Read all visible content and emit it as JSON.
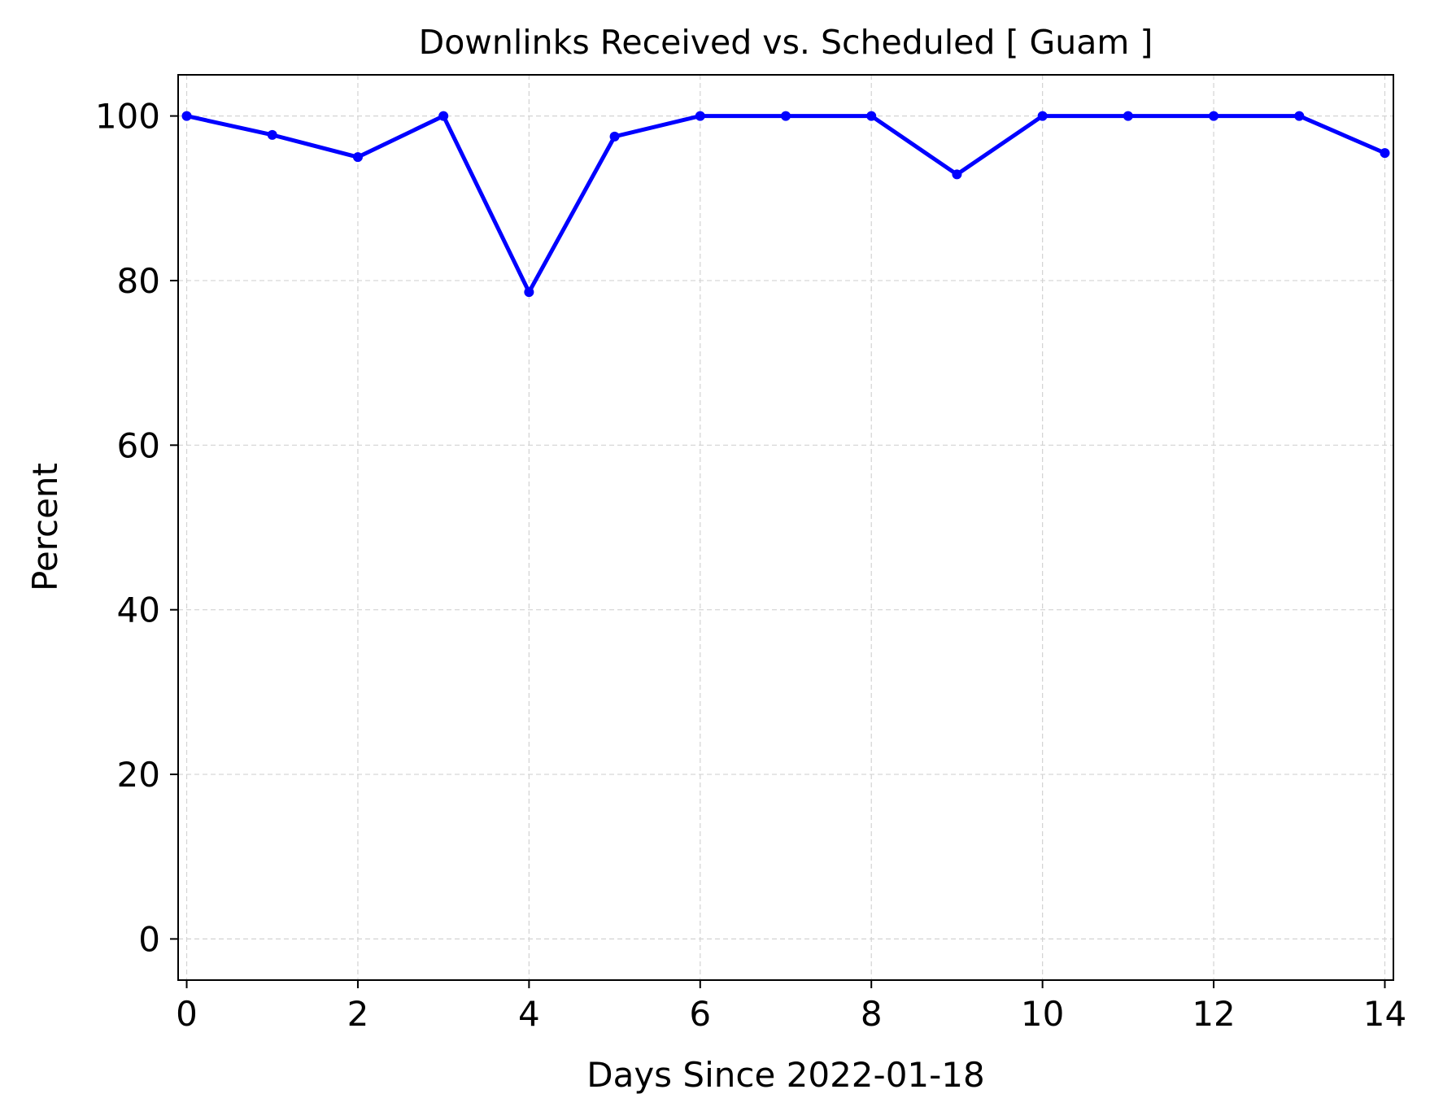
{
  "chart_data": {
    "type": "line",
    "title": "Downlinks Received vs. Scheduled [ Guam ]",
    "xlabel": "Days Since 2022-01-18",
    "ylabel": "Percent",
    "xlim": [
      -0.1,
      14.1
    ],
    "ylim": [
      -5,
      105
    ],
    "xticks": [
      0,
      2,
      4,
      6,
      8,
      10,
      12,
      14
    ],
    "yticks": [
      0,
      20,
      40,
      60,
      80,
      100
    ],
    "grid": true,
    "line_color": "#0000ff",
    "grid_color": "#d3d3d3",
    "series": [
      {
        "x": [
          0,
          1,
          2,
          3,
          4,
          5,
          6,
          7,
          8,
          9,
          10,
          11,
          12,
          13,
          14
        ],
        "values": [
          100,
          97.7,
          95.0,
          100,
          78.6,
          97.5,
          100,
          100,
          100,
          92.9,
          100,
          100,
          100,
          100,
          95.5
        ]
      }
    ]
  }
}
